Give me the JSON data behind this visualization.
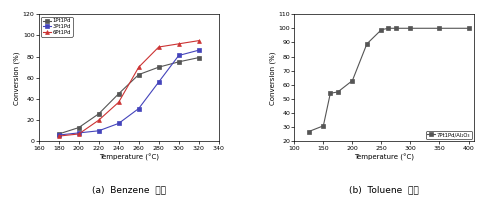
{
  "benzene": {
    "caption": "(a)  Benzene  산화",
    "xlabel": "Temperature (°C)",
    "ylabel": "Conversion (%)",
    "xlim": [
      160,
      340
    ],
    "ylim": [
      0,
      120
    ],
    "yticks": [
      0,
      20,
      40,
      60,
      80,
      100,
      120
    ],
    "xticks": [
      160,
      180,
      200,
      220,
      240,
      260,
      280,
      300,
      320,
      340
    ],
    "series": [
      {
        "label": "1Pt1Pd",
        "color": "#555555",
        "marker": "s",
        "x": [
          180,
          200,
          220,
          240,
          260,
          280,
          300,
          320
        ],
        "y": [
          7,
          13,
          26,
          45,
          63,
          70,
          75,
          79
        ]
      },
      {
        "label": "3Pt1Pd",
        "color": "#4444bb",
        "marker": "s",
        "x": [
          180,
          200,
          220,
          240,
          260,
          280,
          300,
          320
        ],
        "y": [
          6,
          8,
          10,
          17,
          31,
          56,
          81,
          86
        ]
      },
      {
        "label": "6Pt1Pd",
        "color": "#cc3333",
        "marker": "^",
        "x": [
          180,
          200,
          220,
          240,
          260,
          280,
          300,
          320
        ],
        "y": [
          5,
          7,
          20,
          37,
          70,
          89,
          92,
          95
        ]
      }
    ]
  },
  "toluene": {
    "caption": "(b)  Toluene  산화",
    "xlabel": "Temperature (°C)",
    "ylabel": "Conversion (%)",
    "xlim": [
      100,
      410
    ],
    "ylim": [
      20,
      110
    ],
    "yticks": [
      20,
      30,
      40,
      50,
      60,
      70,
      80,
      90,
      100,
      110
    ],
    "xticks": [
      100,
      150,
      200,
      250,
      300,
      350,
      400
    ],
    "series": [
      {
        "label": "7Pt1Pd/Al₂O₃",
        "color": "#555555",
        "marker": "s",
        "x": [
          125,
          150,
          162,
          175,
          200,
          225,
          250,
          262,
          275,
          300,
          350,
          400
        ],
        "y": [
          27,
          31,
          54,
          55,
          63,
          89,
          99,
          100,
          100,
          100,
          100,
          100
        ]
      }
    ]
  },
  "fig_width": 4.84,
  "fig_height": 2.02,
  "dpi": 100
}
